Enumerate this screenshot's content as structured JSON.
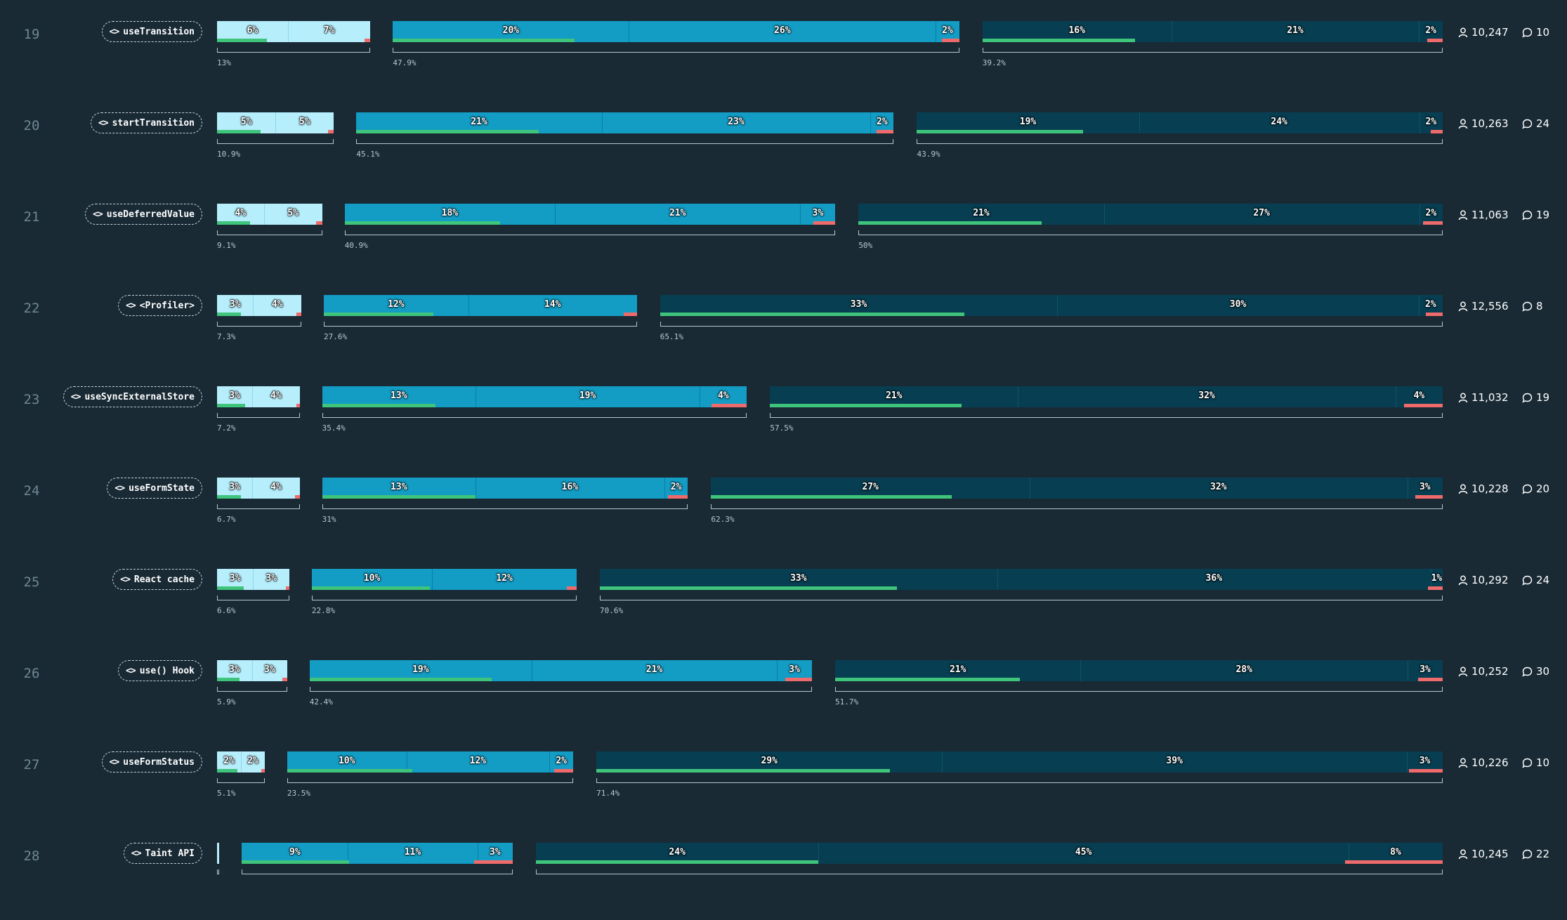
{
  "chart_data": {
    "type": "bar",
    "colors": {
      "never_heard": "#b6eefc",
      "heard": "#139cc4",
      "used": "#073e51",
      "positive": "#3fc47b",
      "negative": "#ef6a6a",
      "background": "#192a35"
    },
    "rows": [
      {
        "rank": "19",
        "feature": "useTransition",
        "groups": [
          {
            "total_label": "13%",
            "segments": [
              "6%",
              "7%"
            ],
            "values": [
              6,
              7
            ],
            "positive": 4.2,
            "negative": 0.5
          },
          {
            "total_label": "47.9%",
            "segments": [
              "20%",
              "26%",
              "2%"
            ],
            "values": [
              20,
              26,
              2
            ],
            "positive": 15.4,
            "negative": 1.5
          },
          {
            "total_label": "39.2%",
            "segments": [
              "16%",
              "21%",
              "2%"
            ],
            "values": [
              16,
              21,
              2
            ],
            "positive": 12.9,
            "negative": 1.3
          }
        ],
        "respondents": "10,247",
        "comments": "10"
      },
      {
        "rank": "20",
        "feature": "startTransition",
        "groups": [
          {
            "total_label": "10.9%",
            "segments": [
              "5%",
              "5%"
            ],
            "values": [
              5,
              5
            ],
            "positive": 3.7,
            "negative": 0.5
          },
          {
            "total_label": "45.1%",
            "segments": [
              "21%",
              "23%",
              "2%"
            ],
            "values": [
              21,
              23,
              2
            ],
            "positive": 15.6,
            "negative": 1.5
          },
          {
            "total_label": "43.9%",
            "segments": [
              "19%",
              "24%",
              "2%"
            ],
            "values": [
              19,
              24,
              2
            ],
            "positive": 14.2,
            "negative": 1.0
          }
        ],
        "respondents": "10,263",
        "comments": "24"
      },
      {
        "rank": "21",
        "feature": "useDeferredValue",
        "groups": [
          {
            "total_label": "9.1%",
            "segments": [
              "4%",
              "5%"
            ],
            "values": [
              4,
              5
            ],
            "positive": 2.8,
            "negative": 0.5
          },
          {
            "total_label": "40.9%",
            "segments": [
              "18%",
              "21%",
              "3%"
            ],
            "values": [
              18,
              21,
              3
            ],
            "positive": 13.3,
            "negative": 1.9
          },
          {
            "total_label": "50%",
            "segments": [
              "21%",
              "27%",
              "2%"
            ],
            "values": [
              21,
              27,
              2
            ],
            "positive": 15.7,
            "negative": 1.7
          }
        ],
        "respondents": "11,063",
        "comments": "19"
      },
      {
        "rank": "22",
        "feature": "<Profiler>",
        "groups": [
          {
            "total_label": "7.3%",
            "segments": [
              "3%",
              "4%"
            ],
            "values": [
              3,
              4
            ],
            "positive": 2.0,
            "negative": 0.4
          },
          {
            "total_label": "27.6%",
            "segments": [
              "12%",
              "14%"
            ],
            "values": [
              12,
              14
            ],
            "positive": 9.1,
            "negative": 1.1
          },
          {
            "total_label": "65.1%",
            "segments": [
              "33%",
              "30%",
              "2%"
            ],
            "values": [
              33,
              30,
              2
            ],
            "positive": 25.3,
            "negative": 1.4
          }
        ],
        "respondents": "12,556",
        "comments": "8"
      },
      {
        "rank": "23",
        "feature": "useSyncExternalStore",
        "groups": [
          {
            "total_label": "7.2%",
            "segments": [
              "3%",
              "4%"
            ],
            "values": [
              3,
              4
            ],
            "positive": 2.4,
            "negative": 0.3
          },
          {
            "total_label": "35.4%",
            "segments": [
              "13%",
              "19%",
              "4%"
            ],
            "values": [
              13,
              19,
              4
            ],
            "positive": 9.6,
            "negative": 3.0
          },
          {
            "total_label": "57.5%",
            "segments": [
              "21%",
              "32%",
              "4%"
            ],
            "values": [
              21,
              32,
              4
            ],
            "positive": 16.2,
            "negative": 3.3
          }
        ],
        "respondents": "11,032",
        "comments": "19"
      },
      {
        "rank": "24",
        "feature": "useFormState",
        "groups": [
          {
            "total_label": "6.7%",
            "segments": [
              "3%",
              "4%"
            ],
            "values": [
              3,
              4
            ],
            "positive": 2.0,
            "negative": 0.4
          },
          {
            "total_label": "31%",
            "segments": [
              "13%",
              "16%",
              "2%"
            ],
            "values": [
              13,
              16,
              2
            ],
            "positive": 13.0,
            "negative": 1.7
          },
          {
            "total_label": "62.3%",
            "segments": [
              "27%",
              "32%",
              "3%"
            ],
            "values": [
              27,
              32,
              3
            ],
            "positive": 20.4,
            "negative": 2.3
          }
        ],
        "respondents": "10,228",
        "comments": "20"
      },
      {
        "rank": "25",
        "feature": "React cache",
        "groups": [
          {
            "total_label": "6.6%",
            "segments": [
              "3%",
              "3%"
            ],
            "values": [
              3,
              3
            ],
            "positive": 2.2,
            "negative": 0.3
          },
          {
            "total_label": "22.8%",
            "segments": [
              "10%",
              "12%"
            ],
            "values": [
              10,
              12
            ],
            "positive": 9.8,
            "negative": 0.8
          },
          {
            "total_label": "70.6%",
            "segments": [
              "33%",
              "36%",
              "1%"
            ],
            "values": [
              33,
              36,
              1
            ],
            "positive": 24.7,
            "negative": 1.2
          }
        ],
        "respondents": "10,292",
        "comments": "24"
      },
      {
        "rank": "26",
        "feature": "use() Hook",
        "groups": [
          {
            "total_label": "5.9%",
            "segments": [
              "3%",
              "3%"
            ],
            "values": [
              3,
              3
            ],
            "positive": 1.9,
            "negative": 0.4
          },
          {
            "total_label": "42.4%",
            "segments": [
              "19%",
              "21%",
              "3%"
            ],
            "values": [
              19,
              21,
              3
            ],
            "positive": 15.6,
            "negative": 2.3
          },
          {
            "total_label": "51.7%",
            "segments": [
              "21%",
              "28%",
              "3%"
            ],
            "values": [
              21,
              28,
              3
            ],
            "positive": 15.8,
            "negative": 2.1
          }
        ],
        "respondents": "10,252",
        "comments": "30"
      },
      {
        "rank": "27",
        "feature": "useFormStatus",
        "groups": [
          {
            "total_label": "5.1%",
            "segments": [
              "2%",
              "2%"
            ],
            "values": [
              2,
              2
            ],
            "positive": 1.7,
            "negative": 0.3
          },
          {
            "total_label": "23.5%",
            "segments": [
              "10%",
              "12%",
              "2%"
            ],
            "values": [
              10,
              12,
              2
            ],
            "positive": 10.5,
            "negative": 1.6
          },
          {
            "total_label": "71.4%",
            "segments": [
              "29%",
              "39%",
              "3%"
            ],
            "values": [
              29,
              39,
              3
            ],
            "positive": 24.6,
            "negative": 2.8
          }
        ],
        "respondents": "10,226",
        "comments": "10"
      },
      {
        "rank": "28",
        "feature": "Taint API",
        "groups": [
          {
            "total_label": "",
            "segments": [
              ""
            ],
            "values": [
              0.2
            ],
            "positive": 0,
            "negative": 0
          },
          {
            "total_label": "",
            "segments": [
              "9%",
              "11%",
              "3%"
            ],
            "values": [
              9,
              11,
              3
            ],
            "positive": 9.1,
            "negative": 3.3
          },
          {
            "total_label": "",
            "segments": [
              "24%",
              "45%",
              "8%"
            ],
            "values": [
              24,
              45,
              8
            ],
            "positive": 24.0,
            "negative": 8.3
          }
        ],
        "respondents": "10,245",
        "comments": "22"
      }
    ]
  }
}
